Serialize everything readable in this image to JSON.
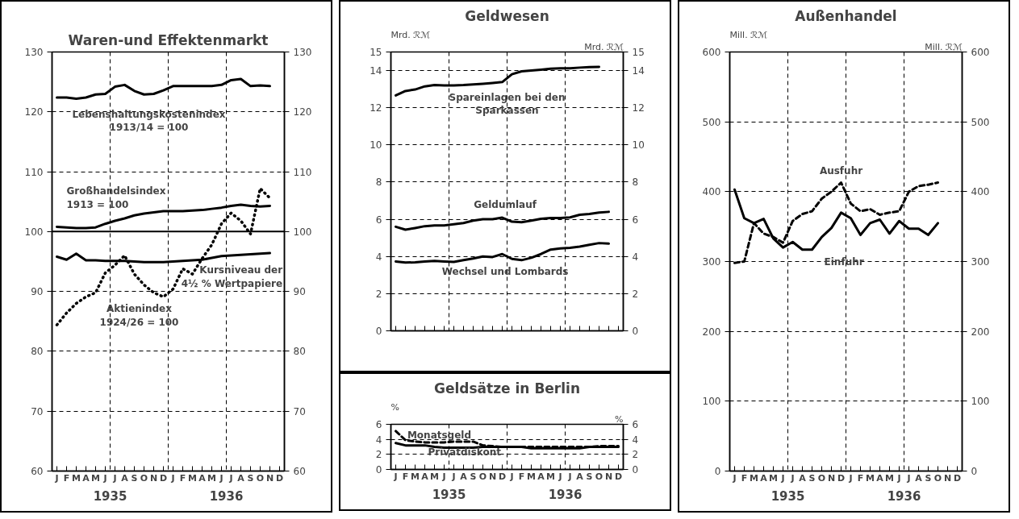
{
  "chart_data": [
    {
      "type": "line",
      "title": "Waren-und Effektenmarkt",
      "categories": [
        "J",
        "F",
        "M",
        "A",
        "M",
        "J",
        "J",
        "A",
        "S",
        "O",
        "N",
        "D",
        "J",
        "F",
        "M",
        "A",
        "M",
        "J",
        "J",
        "A",
        "S",
        "O",
        "N",
        "D"
      ],
      "series": [
        {
          "name": "Lebenshaltungskostenindex\n1913/14 = 100",
          "color": "#000000",
          "line_style": "solid",
          "values": [
            122.4,
            122.4,
            122.2,
            122.4,
            122.9,
            123.0,
            124.2,
            124.5,
            123.5,
            122.9,
            123.0,
            123.6,
            124.3,
            124.3,
            124.3,
            124.3,
            124.3,
            124.5,
            125.3,
            125.5,
            124.3,
            124.4,
            124.3,
            null
          ]
        },
        {
          "name": "Großhandelsindex\n1913 = 100",
          "color": "#000000",
          "line_style": "solid",
          "values": [
            100.8,
            100.7,
            100.6,
            100.6,
            100.7,
            101.3,
            101.8,
            102.2,
            102.7,
            103.0,
            103.2,
            103.4,
            103.4,
            103.4,
            103.5,
            103.6,
            103.8,
            104.0,
            104.3,
            104.5,
            104.3,
            104.2,
            104.3,
            null
          ]
        },
        {
          "name": "Kursniveau der\n4½ % Wertpapiere",
          "color": "#000000",
          "line_style": "solid",
          "values": [
            95.8,
            95.3,
            96.3,
            95.2,
            95.2,
            95.1,
            95.1,
            95.1,
            95.0,
            94.9,
            94.9,
            94.9,
            95.0,
            95.1,
            95.2,
            95.3,
            95.6,
            95.9,
            96.0,
            96.1,
            96.2,
            96.3,
            96.4,
            null
          ]
        },
        {
          "name": "Aktienindex\n1924/26 = 100",
          "color": "#000000",
          "line_style": "dotted",
          "values": [
            84.4,
            86.4,
            88.0,
            89.1,
            89.8,
            93.1,
            94.4,
            96.0,
            92.9,
            91.1,
            89.8,
            89.1,
            90.4,
            93.8,
            92.9,
            95.5,
            97.8,
            101.3,
            103.1,
            101.8,
            99.6,
            107.2,
            105.6,
            null
          ]
        }
      ],
      "annotations": [
        "1935",
        "1936"
      ],
      "ylim": [
        60,
        130
      ],
      "yticks": [
        60,
        70,
        80,
        90,
        100,
        110,
        120,
        130
      ],
      "y2lim": [
        60,
        130
      ],
      "y2ticks": [
        60,
        70,
        80,
        90,
        100,
        110,
        120,
        130
      ],
      "grid": true,
      "ref_lines": [
        {
          "axis": "y",
          "value": 100
        }
      ]
    },
    {
      "type": "line",
      "title": "Geldwesen",
      "ylabel": "Mrd. ℛℳ",
      "y2label": "Mrd. ℛℳ",
      "categories": [
        null,
        null,
        null,
        null,
        null,
        null,
        null,
        null,
        null,
        null,
        null,
        null,
        null,
        null,
        null,
        null,
        null,
        null,
        null,
        null,
        null,
        null,
        null,
        null
      ],
      "series": [
        {
          "name": "Spareinlagen bei den\nSparkassen",
          "color": "#000000",
          "line_style": "solid",
          "values": [
            12.66,
            12.9,
            12.98,
            13.15,
            13.22,
            13.2,
            13.2,
            13.22,
            13.26,
            13.29,
            13.33,
            13.38,
            13.8,
            13.96,
            14.0,
            14.05,
            14.1,
            14.12,
            14.12,
            14.16,
            14.19,
            14.2,
            null,
            null
          ]
        },
        {
          "name": "Geldumlauf",
          "color": "#000000",
          "line_style": "solid",
          "values": [
            5.6,
            5.44,
            5.53,
            5.63,
            5.67,
            5.67,
            5.73,
            5.8,
            5.93,
            6.0,
            6.0,
            6.09,
            5.87,
            5.84,
            5.93,
            6.03,
            6.07,
            6.07,
            6.1,
            6.24,
            6.29,
            6.36,
            6.4,
            null
          ]
        },
        {
          "name": "Wechsel und Lombards",
          "color": "#000000",
          "line_style": "solid",
          "values": [
            3.73,
            3.67,
            3.69,
            3.73,
            3.76,
            3.73,
            3.71,
            3.8,
            3.89,
            4.0,
            3.97,
            4.13,
            3.87,
            3.8,
            3.93,
            4.13,
            4.37,
            4.43,
            4.47,
            4.53,
            4.63,
            4.72,
            4.69,
            null
          ]
        }
      ],
      "ylim": [
        0,
        15
      ],
      "yticks": [
        0,
        2,
        4,
        6,
        8,
        10,
        12,
        14,
        15
      ],
      "y2lim": [
        0,
        15
      ],
      "y2ticks": [
        0,
        2,
        4,
        6,
        8,
        10,
        12,
        14,
        15
      ],
      "tick_labels": "y",
      "grid": true
    },
    {
      "type": "line",
      "title": "Geldsätze in Berlin",
      "ylabel": "%",
      "y2label": "%",
      "categories": [
        "J",
        "F",
        "M",
        "A",
        "M",
        "J",
        "J",
        "A",
        "S",
        "O",
        "N",
        "D",
        "J",
        "F",
        "M",
        "A",
        "M",
        "J",
        "J",
        "A",
        "S",
        "O",
        "N",
        "D"
      ],
      "series": [
        {
          "name": "Monatsgeld",
          "color": "#000000",
          "line_style": "dashed",
          "values": [
            5.1,
            3.9,
            3.7,
            3.6,
            3.6,
            3.6,
            3.7,
            3.7,
            3.7,
            3.2,
            3.1,
            3.0,
            3.0,
            3.0,
            3.0,
            3.0,
            3.0,
            3.0,
            3.0,
            3.0,
            3.0,
            3.1,
            3.1,
            3.1
          ]
        },
        {
          "name": "Privatdiskont",
          "color": "#000000",
          "line_style": "solid",
          "values": [
            3.5,
            3.2,
            3.2,
            3.2,
            3.0,
            2.9,
            2.9,
            2.9,
            2.9,
            3.0,
            3.0,
            3.0,
            3.0,
            3.0,
            2.8,
            2.8,
            2.8,
            2.8,
            2.8,
            2.8,
            3.0,
            3.0,
            3.0,
            3.0
          ]
        }
      ],
      "annotations": [
        "1935",
        "1936"
      ],
      "ylim": [
        0,
        6
      ],
      "yticks": [
        0,
        2,
        4,
        6
      ],
      "y2lim": [
        0,
        6
      ],
      "y2ticks": [
        0,
        2,
        4,
        6
      ],
      "grid": true
    },
    {
      "type": "line",
      "title": "Außenhandel",
      "ylabel": "Mill. ℛℳ",
      "y2label": "Mill. ℛℳ",
      "categories": [
        "J",
        "F",
        "M",
        "A",
        "M",
        "J",
        "J",
        "A",
        "S",
        "O",
        "N",
        "D",
        "J",
        "F",
        "M",
        "A",
        "M",
        "J",
        "J",
        "A",
        "S",
        "O",
        "N",
        "D"
      ],
      "series": [
        {
          "name": "Ausfuhr",
          "color": "#000000",
          "line_style": "dashed",
          "values": [
            298,
            300,
            355,
            340,
            335,
            327,
            358,
            368,
            372,
            390,
            400,
            413,
            383,
            372,
            375,
            367,
            370,
            372,
            400,
            408,
            410,
            413,
            null,
            null
          ]
        },
        {
          "name": "Einfuhr",
          "color": "#000000",
          "line_style": "solid",
          "values": [
            403,
            362,
            355,
            361,
            333,
            320,
            328,
            317,
            317,
            335,
            348,
            370,
            362,
            338,
            355,
            360,
            340,
            358,
            347,
            347,
            338,
            355,
            null,
            null
          ]
        }
      ],
      "annotations": [
        "1935",
        "1936"
      ],
      "ylim": [
        0,
        600
      ],
      "yticks": [
        0,
        100,
        200,
        300,
        400,
        500,
        600
      ],
      "y2lim": [
        0,
        600
      ],
      "y2ticks": [
        0,
        100,
        200,
        300,
        400,
        500,
        600
      ],
      "grid": true
    }
  ]
}
